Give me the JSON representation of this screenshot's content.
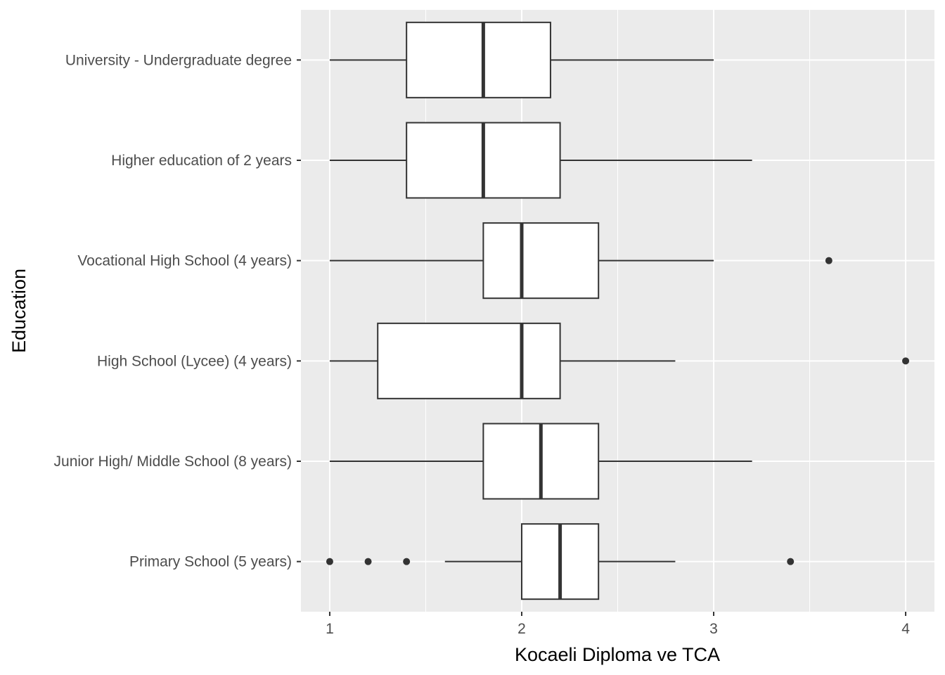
{
  "chart_data": {
    "type": "boxplot",
    "orientation": "horizontal",
    "xlabel": "Kocaeli Diploma ve TCA",
    "ylabel": "Education",
    "xlim": [
      0.85,
      4.15
    ],
    "x_ticks": [
      1,
      2,
      3,
      4
    ],
    "grid": true,
    "colors": {
      "panel_background": "#ebebeb",
      "grid_line": "#ffffff",
      "box_fill": "#ffffff",
      "box_stroke": "#333333",
      "tick_text": "#4d4d4d"
    },
    "categories": [
      "Primary School (5 years)",
      "Junior High/ Middle School (8 years)",
      "High School (Lycee) (4 years)",
      "Vocational High School (4 years)",
      "Higher education of 2 years",
      "University - Undergraduate degree"
    ],
    "boxes": [
      {
        "category": "Primary School (5 years)",
        "whisker_low": 1.6,
        "q1": 2.0,
        "median": 2.2,
        "q3": 2.4,
        "whisker_high": 2.8,
        "outliers": [
          1.0,
          1.2,
          1.4,
          3.4
        ]
      },
      {
        "category": "Junior High/ Middle School (8 years)",
        "whisker_low": 1.0,
        "q1": 1.8,
        "median": 2.1,
        "q3": 2.4,
        "whisker_high": 3.2,
        "outliers": []
      },
      {
        "category": "High School (Lycee) (4 years)",
        "whisker_low": 1.0,
        "q1": 1.25,
        "median": 2.0,
        "q3": 2.2,
        "whisker_high": 2.8,
        "outliers": [
          4.0
        ]
      },
      {
        "category": "Vocational High School (4 years)",
        "whisker_low": 1.0,
        "q1": 1.8,
        "median": 2.0,
        "q3": 2.4,
        "whisker_high": 3.0,
        "outliers": [
          3.6
        ]
      },
      {
        "category": "Higher education of 2 years",
        "whisker_low": 1.0,
        "q1": 1.4,
        "median": 1.8,
        "q3": 2.2,
        "whisker_high": 3.2,
        "outliers": []
      },
      {
        "category": "University - Undergraduate degree",
        "whisker_low": 1.0,
        "q1": 1.4,
        "median": 1.8,
        "q3": 2.15,
        "whisker_high": 3.0,
        "outliers": []
      }
    ]
  }
}
